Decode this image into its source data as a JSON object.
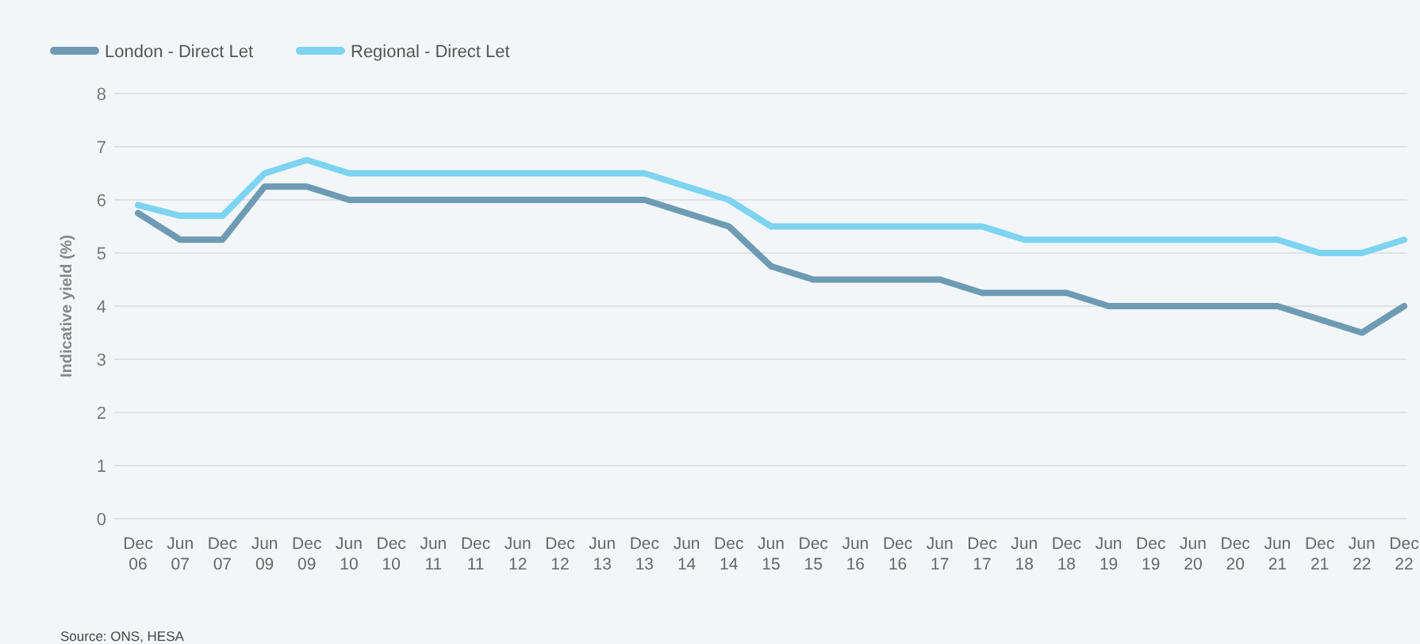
{
  "chart_data": {
    "type": "line",
    "ylabel": "Indicative yield (%)",
    "categories": [
      "Dec\n06",
      "Jun\n07",
      "Dec\n07",
      "Jun\n09",
      "Dec\n09",
      "Jun\n10",
      "Dec\n10",
      "Jun\n11",
      "Dec\n11",
      "Jun\n12",
      "Dec\n12",
      "Jun\n13",
      "Dec\n13",
      "Jun\n14",
      "Dec\n14",
      "Jun\n15",
      "Dec\n15",
      "Jun\n16",
      "Dec\n16",
      "Jun\n17",
      "Dec\n17",
      "Jun\n18",
      "Dec\n18",
      "Jun\n19",
      "Dec\n19",
      "Jun\n20",
      "Dec\n20",
      "Jun\n21",
      "Dec\n21",
      "Jun\n22",
      "Dec\n22"
    ],
    "series": [
      {
        "name": "London - Direct Let",
        "color": "#6e9bb3",
        "values": [
          5.75,
          5.25,
          5.25,
          6.25,
          6.25,
          6,
          6,
          6,
          6,
          6,
          6,
          6,
          6,
          5.75,
          5.5,
          4.75,
          4.5,
          4.5,
          4.5,
          4.5,
          4.25,
          4.25,
          4.25,
          4,
          4,
          4,
          4,
          4,
          3.75,
          3.5,
          4
        ]
      },
      {
        "name": "Regional - Direct Let",
        "color": "#7dd3f0",
        "values": [
          5.9,
          5.7,
          5.7,
          6.5,
          6.75,
          6.5,
          6.5,
          6.5,
          6.5,
          6.5,
          6.5,
          6.5,
          6.5,
          6.25,
          6,
          5.5,
          5.5,
          5.5,
          5.5,
          5.5,
          5.5,
          5.25,
          5.25,
          5.25,
          5.25,
          5.25,
          5.25,
          5.25,
          5,
          5,
          5.25
        ]
      }
    ],
    "ylim": [
      0,
      8
    ],
    "yticks": [
      0,
      1,
      2,
      3,
      4,
      5,
      6,
      7,
      8
    ],
    "grid": "y",
    "legend": "top left",
    "marker": "none",
    "line_style": "solid",
    "annotations": [
      "Source: ONS, HESA"
    ]
  }
}
